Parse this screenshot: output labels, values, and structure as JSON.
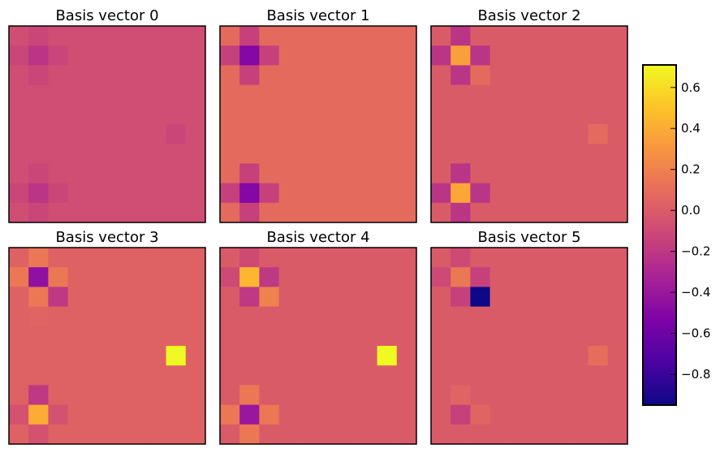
{
  "chart_data": {
    "type": "heatmap",
    "colormap": "plasma",
    "colorbar": {
      "vmin": -0.95,
      "vmax": 0.71,
      "ticks": [
        -0.8,
        -0.6,
        -0.4,
        -0.2,
        0.0,
        0.2,
        0.4,
        0.6
      ],
      "tick_labels": [
        "−0.8",
        "−0.6",
        "−0.4",
        "−0.2",
        "0.0",
        "0.2",
        "0.4",
        "0.6"
      ]
    },
    "panels": [
      {
        "title": "Basis vector 0",
        "values": [
          [
            -0.08,
            -0.12,
            -0.08,
            -0.08,
            -0.08,
            -0.08,
            -0.08,
            -0.08,
            -0.08,
            -0.08
          ],
          [
            -0.12,
            -0.22,
            -0.12,
            -0.08,
            -0.08,
            -0.08,
            -0.08,
            -0.08,
            -0.08,
            -0.08
          ],
          [
            -0.08,
            -0.12,
            -0.08,
            -0.08,
            -0.08,
            -0.08,
            -0.08,
            -0.08,
            -0.08,
            -0.08
          ],
          [
            -0.08,
            -0.08,
            -0.08,
            -0.08,
            -0.08,
            -0.08,
            -0.08,
            -0.08,
            -0.08,
            -0.08
          ],
          [
            -0.08,
            -0.08,
            -0.08,
            -0.08,
            -0.08,
            -0.08,
            -0.08,
            -0.08,
            -0.08,
            -0.08
          ],
          [
            -0.08,
            -0.08,
            -0.08,
            -0.08,
            -0.08,
            -0.08,
            -0.08,
            -0.08,
            -0.12,
            -0.08
          ],
          [
            -0.08,
            -0.08,
            -0.08,
            -0.08,
            -0.08,
            -0.08,
            -0.08,
            -0.08,
            -0.08,
            -0.08
          ],
          [
            -0.08,
            -0.12,
            -0.08,
            -0.08,
            -0.08,
            -0.08,
            -0.08,
            -0.08,
            -0.08,
            -0.08
          ],
          [
            -0.12,
            -0.22,
            -0.12,
            -0.08,
            -0.08,
            -0.08,
            -0.08,
            -0.08,
            -0.08,
            -0.08
          ],
          [
            -0.08,
            -0.12,
            -0.08,
            -0.08,
            -0.08,
            -0.08,
            -0.08,
            -0.08,
            -0.08,
            -0.08
          ]
        ]
      },
      {
        "title": "Basis vector 1",
        "values": [
          [
            0.08,
            -0.15,
            0.08,
            0.08,
            0.08,
            0.08,
            0.08,
            0.08,
            0.08,
            0.08
          ],
          [
            -0.15,
            -0.5,
            -0.15,
            0.08,
            0.08,
            0.08,
            0.08,
            0.08,
            0.08,
            0.08
          ],
          [
            0.08,
            -0.15,
            0.08,
            0.08,
            0.08,
            0.08,
            0.08,
            0.08,
            0.08,
            0.08
          ],
          [
            0.08,
            0.08,
            0.08,
            0.08,
            0.08,
            0.08,
            0.08,
            0.08,
            0.08,
            0.08
          ],
          [
            0.08,
            0.08,
            0.08,
            0.08,
            0.08,
            0.08,
            0.08,
            0.08,
            0.08,
            0.08
          ],
          [
            0.08,
            0.08,
            0.08,
            0.08,
            0.08,
            0.08,
            0.08,
            0.08,
            0.08,
            0.08
          ],
          [
            0.08,
            0.08,
            0.08,
            0.08,
            0.08,
            0.08,
            0.08,
            0.08,
            0.08,
            0.08
          ],
          [
            0.08,
            -0.15,
            0.08,
            0.08,
            0.08,
            0.08,
            0.08,
            0.08,
            0.08,
            0.08
          ],
          [
            -0.15,
            -0.5,
            -0.15,
            0.08,
            0.08,
            0.08,
            0.08,
            0.08,
            0.08,
            0.08
          ],
          [
            0.08,
            -0.15,
            0.08,
            0.08,
            0.08,
            0.08,
            0.08,
            0.08,
            0.08,
            0.08
          ]
        ]
      },
      {
        "title": "Basis vector 2",
        "values": [
          [
            0.0,
            -0.22,
            0.0,
            0.0,
            0.0,
            0.0,
            0.0,
            0.0,
            0.0,
            0.0
          ],
          [
            -0.22,
            0.35,
            -0.22,
            0.0,
            0.0,
            0.0,
            0.0,
            0.0,
            0.0,
            0.0
          ],
          [
            0.0,
            -0.22,
            0.08,
            0.0,
            0.0,
            0.0,
            0.0,
            0.0,
            0.0,
            0.0
          ],
          [
            0.0,
            0.0,
            0.0,
            0.0,
            0.0,
            0.0,
            0.0,
            0.0,
            0.0,
            0.0
          ],
          [
            0.0,
            0.0,
            0.0,
            0.0,
            0.0,
            0.0,
            0.0,
            0.0,
            0.0,
            0.0
          ],
          [
            0.0,
            0.0,
            0.0,
            0.0,
            0.0,
            0.0,
            0.0,
            0.0,
            0.08,
            0.0
          ],
          [
            0.0,
            0.0,
            0.0,
            0.0,
            0.0,
            0.0,
            0.0,
            0.0,
            0.0,
            0.0
          ],
          [
            0.0,
            -0.22,
            0.0,
            0.0,
            0.0,
            0.0,
            0.0,
            0.0,
            0.0,
            0.0
          ],
          [
            -0.22,
            0.38,
            -0.22,
            0.0,
            0.0,
            0.0,
            0.0,
            0.0,
            0.0,
            0.0
          ],
          [
            0.0,
            -0.22,
            0.0,
            0.0,
            0.0,
            0.0,
            0.0,
            0.0,
            0.0,
            0.0
          ]
        ]
      },
      {
        "title": "Basis vector 3",
        "values": [
          [
            0.03,
            0.15,
            0.03,
            0.03,
            0.03,
            0.03,
            0.03,
            0.03,
            0.03,
            0.03
          ],
          [
            0.15,
            -0.45,
            0.15,
            0.03,
            0.03,
            0.03,
            0.03,
            0.03,
            0.03,
            0.03
          ],
          [
            0.03,
            0.15,
            -0.2,
            0.03,
            0.03,
            0.03,
            0.03,
            0.03,
            0.03,
            0.03
          ],
          [
            0.03,
            0.05,
            0.03,
            0.03,
            0.03,
            0.03,
            0.03,
            0.03,
            0.03,
            0.03
          ],
          [
            0.03,
            0.03,
            0.03,
            0.03,
            0.03,
            0.03,
            0.03,
            0.03,
            0.03,
            0.03
          ],
          [
            0.03,
            0.03,
            0.03,
            0.03,
            0.03,
            0.03,
            0.03,
            0.03,
            0.71,
            0.03
          ],
          [
            0.03,
            0.03,
            0.03,
            0.03,
            0.03,
            0.03,
            0.03,
            0.03,
            0.03,
            0.03
          ],
          [
            0.03,
            -0.2,
            0.03,
            0.03,
            0.03,
            0.03,
            0.03,
            0.03,
            0.03,
            0.03
          ],
          [
            -0.05,
            0.4,
            -0.05,
            0.03,
            0.03,
            0.03,
            0.03,
            0.03,
            0.03,
            0.03
          ],
          [
            0.03,
            -0.05,
            0.03,
            0.03,
            0.03,
            0.03,
            0.03,
            0.03,
            0.03,
            0.03
          ]
        ]
      },
      {
        "title": "Basis vector 4",
        "values": [
          [
            0.0,
            -0.1,
            0.0,
            0.0,
            0.0,
            0.0,
            0.0,
            0.0,
            0.0,
            0.0
          ],
          [
            -0.1,
            0.45,
            -0.2,
            0.0,
            0.0,
            0.0,
            0.0,
            0.0,
            0.0,
            0.0
          ],
          [
            0.0,
            -0.2,
            0.2,
            0.0,
            0.0,
            0.0,
            0.0,
            0.0,
            0.0,
            0.0
          ],
          [
            0.0,
            0.0,
            0.0,
            0.0,
            0.0,
            0.0,
            0.0,
            0.0,
            0.0,
            0.0
          ],
          [
            0.0,
            0.0,
            0.0,
            0.0,
            0.0,
            0.0,
            0.0,
            0.0,
            0.0,
            0.0
          ],
          [
            0.0,
            0.0,
            0.0,
            0.0,
            0.0,
            0.0,
            0.0,
            0.0,
            0.71,
            0.0
          ],
          [
            0.0,
            0.0,
            0.0,
            0.0,
            0.0,
            0.0,
            0.0,
            0.0,
            0.0,
            0.0
          ],
          [
            0.0,
            0.15,
            0.0,
            0.0,
            0.0,
            0.0,
            0.0,
            0.0,
            0.0,
            0.0
          ],
          [
            0.15,
            -0.4,
            0.15,
            0.0,
            0.0,
            0.0,
            0.0,
            0.0,
            0.0,
            0.0
          ],
          [
            0.0,
            0.15,
            0.0,
            0.0,
            0.0,
            0.0,
            0.0,
            0.0,
            0.0,
            0.0
          ]
        ]
      },
      {
        "title": "Basis vector 5",
        "values": [
          [
            0.0,
            -0.1,
            0.0,
            0.0,
            0.0,
            0.0,
            0.0,
            0.0,
            0.0,
            0.0
          ],
          [
            -0.1,
            0.15,
            -0.15,
            0.0,
            0.0,
            0.0,
            0.0,
            0.0,
            0.0,
            0.0
          ],
          [
            0.0,
            -0.15,
            -0.95,
            0.0,
            0.0,
            0.0,
            0.0,
            0.0,
            0.0,
            0.0
          ],
          [
            0.0,
            0.0,
            0.0,
            0.0,
            0.0,
            0.0,
            0.0,
            0.0,
            0.0,
            0.0
          ],
          [
            0.0,
            0.0,
            0.0,
            0.0,
            0.0,
            0.0,
            0.0,
            0.0,
            0.0,
            0.0
          ],
          [
            0.0,
            0.0,
            0.0,
            0.0,
            0.0,
            0.0,
            0.0,
            0.0,
            0.1,
            0.0
          ],
          [
            0.0,
            0.0,
            0.0,
            0.0,
            0.0,
            0.0,
            0.0,
            0.0,
            0.0,
            0.0
          ],
          [
            0.0,
            0.05,
            0.0,
            0.0,
            0.0,
            0.0,
            0.0,
            0.0,
            0.0,
            0.0
          ],
          [
            0.0,
            -0.15,
            0.05,
            0.0,
            0.0,
            0.0,
            0.0,
            0.0,
            0.0,
            0.0
          ],
          [
            0.0,
            0.0,
            0.0,
            0.0,
            0.0,
            0.0,
            0.0,
            0.0,
            0.0,
            0.0
          ]
        ]
      }
    ]
  }
}
